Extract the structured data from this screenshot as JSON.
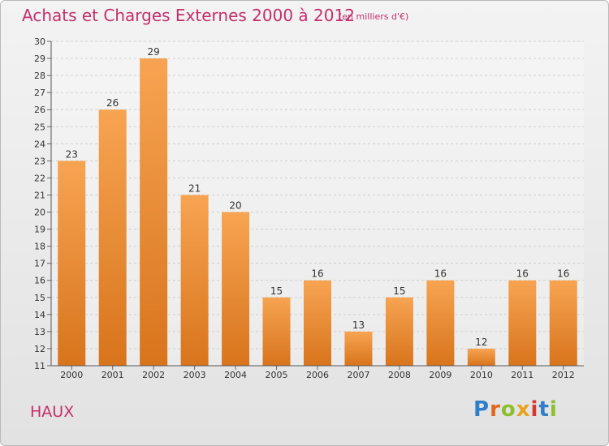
{
  "header": {
    "title": "Achats et Charges Externes 2000 à 2012",
    "subtitle": "(en milliers d'€)"
  },
  "footer": {
    "city": "HAUX",
    "brand_letters": [
      "P",
      "r",
      "o",
      "x",
      "i",
      "t",
      "i"
    ]
  },
  "colors": {
    "bar_top": "#f7a452",
    "bar_bottom": "#d8741c",
    "title": "#c42f6c"
  },
  "chart_data": {
    "type": "bar",
    "categories": [
      "2000",
      "2001",
      "2002",
      "2003",
      "2004",
      "2005",
      "2006",
      "2007",
      "2008",
      "2009",
      "2010",
      "2011",
      "2012"
    ],
    "values": [
      23,
      26,
      29,
      21,
      20,
      15,
      16,
      13,
      15,
      16,
      12,
      16,
      16
    ],
    "ylim": [
      11,
      30
    ],
    "yticks": [
      11,
      12,
      13,
      14,
      15,
      16,
      17,
      18,
      19,
      20,
      21,
      22,
      23,
      24,
      25,
      26,
      27,
      28,
      29,
      30
    ],
    "grid": true,
    "xlabel": "",
    "ylabel": ""
  }
}
